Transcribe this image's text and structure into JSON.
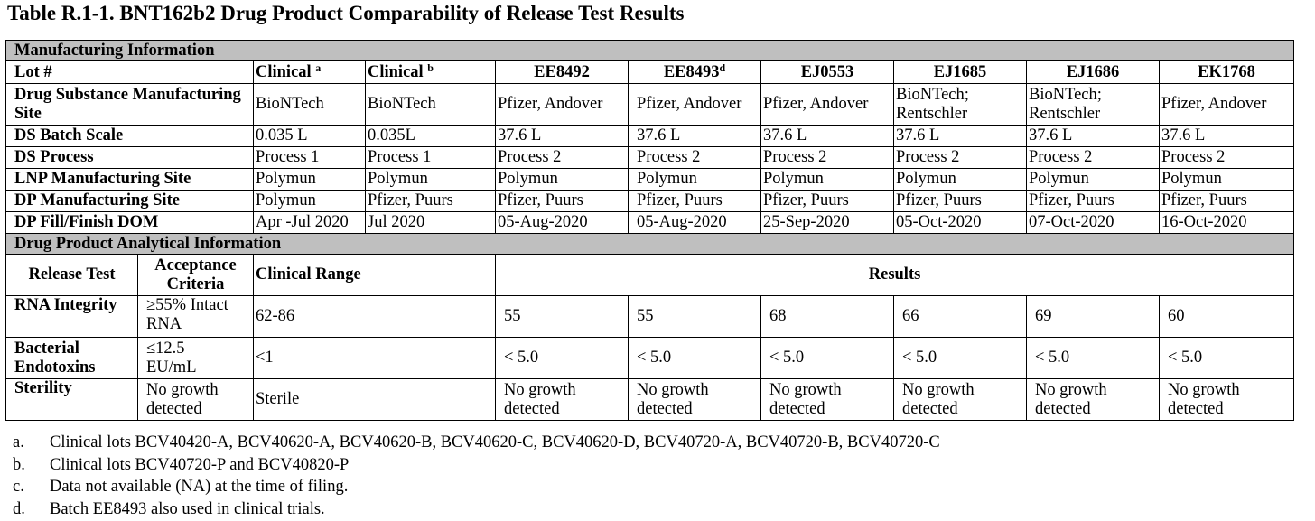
{
  "title": "Table R.1-1.   BNT162b2 Drug Product Comparability of Release Test Results",
  "sections": {
    "manufacturing": "Manufacturing Information",
    "analytical": "Drug Product Analytical Information"
  },
  "lot_header": {
    "label": "Lot #",
    "lots": [
      {
        "name": "Clinical ",
        "sup": "a"
      },
      {
        "name": "Clinical ",
        "sup": "b"
      },
      {
        "name": "EE8492",
        "sup": ""
      },
      {
        "name": "EE8493",
        "sup": "d"
      },
      {
        "name": "EJ0553",
        "sup": ""
      },
      {
        "name": "EJ1685",
        "sup": ""
      },
      {
        "name": "EJ1686",
        "sup": ""
      },
      {
        "name": "EK1768",
        "sup": ""
      }
    ]
  },
  "mfg_rows": [
    {
      "label": "Drug Substance Manufacturing Site",
      "values": [
        "BioNTech",
        "BioNTech",
        "Pfizer, Andover",
        "Pfizer, Andover",
        "Pfizer, Andover",
        "BioNTech; Rentschler",
        "BioNTech; Rentschler",
        "Pfizer, Andover"
      ]
    },
    {
      "label": "DS Batch Scale",
      "values": [
        "0.035 L",
        "0.035L",
        "37.6 L",
        "37.6 L",
        "37.6 L",
        "37.6 L",
        "37.6 L",
        "37.6 L"
      ]
    },
    {
      "label": "DS Process",
      "values": [
        "Process 1",
        "Process 1",
        "Process 2",
        "Process 2",
        "Process 2",
        "Process 2",
        "Process 2",
        "Process 2"
      ]
    },
    {
      "label": "LNP Manufacturing Site",
      "values": [
        "Polymun",
        "Polymun",
        "Polymun",
        "Polymun",
        "Polymun",
        "Polymun",
        "Polymun",
        "Polymun"
      ]
    },
    {
      "label": "DP Manufacturing Site",
      "values": [
        "Polymun",
        "Pfizer, Puurs",
        "Pfizer, Puurs",
        "Pfizer, Puurs",
        "Pfizer, Puurs",
        "Pfizer, Puurs",
        "Pfizer, Puurs",
        "Pfizer, Puurs"
      ]
    },
    {
      "label": "DP Fill/Finish DOM",
      "values": [
        "Apr -Jul 2020",
        "Jul 2020",
        "05-Aug-2020",
        "05-Aug-2020",
        "25-Sep-2020",
        "05-Oct-2020",
        "07-Oct-2020",
        "16-Oct-2020"
      ]
    }
  ],
  "analytical_header": {
    "release_test": "Release Test",
    "acceptance": "Acceptance Criteria",
    "clinical_range": "Clinical Range",
    "results": "Results"
  },
  "tests": [
    {
      "name": "RNA Integrity",
      "criteria": "≥55% Intact RNA",
      "range": "62-86",
      "results": [
        "55",
        "55",
        "68",
        "66",
        "69",
        "60"
      ]
    },
    {
      "name": "Bacterial Endotoxins",
      "criteria": "≤12.5 EU/mL",
      "range": "<1",
      "results": [
        "< 5.0",
        "< 5.0",
        "< 5.0",
        "< 5.0",
        "< 5.0",
        "< 5.0"
      ]
    },
    {
      "name": "Sterility",
      "criteria": "No growth detected",
      "range": "Sterile",
      "results": [
        "No growth detected",
        "No growth detected",
        "No growth detected",
        "No growth detected",
        "No growth detected",
        "No growth detected"
      ]
    }
  ],
  "footnotes": [
    {
      "label": "a.",
      "text": "Clinical lots BCV40420-A, BCV40620-A, BCV40620-B, BCV40620-C, BCV40620-D, BCV40720-A, BCV40720-B, BCV40720-C"
    },
    {
      "label": "b.",
      "text": "Clinical lots BCV40720-P and BCV40820-P"
    },
    {
      "label": "c.",
      "text": "Data not available (NA) at the time of filing."
    },
    {
      "label": "d.",
      "text": "Batch EE8493 also used in clinical trials."
    }
  ]
}
